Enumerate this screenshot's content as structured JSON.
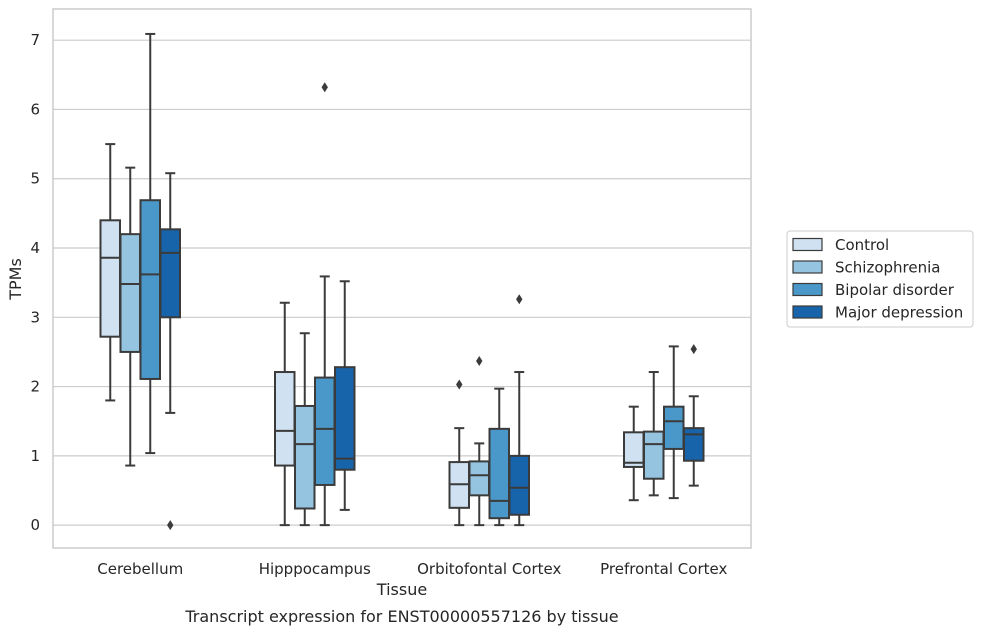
{
  "chart_data": {
    "type": "box",
    "title": "",
    "caption": "Transcript expression for ENST00000557126 by tissue",
    "xlabel": "Tissue",
    "ylabel": "TPMs",
    "ylim": [
      -0.33,
      7.45
    ],
    "yticks": [
      0,
      1,
      2,
      3,
      4,
      5,
      6,
      7
    ],
    "grid": "horizontal",
    "legend_position": "right",
    "categories": [
      "Cerebellum",
      "Hipppocampus",
      "Orbitofontal Cortex",
      "Prefrontal Cortex"
    ],
    "series": [
      {
        "name": "Control",
        "color": "#d0e1f2",
        "boxes": [
          {
            "whislo": 1.8,
            "q1": 2.72,
            "med": 3.86,
            "q3": 4.4,
            "whishi": 5.5,
            "fliers": []
          },
          {
            "whislo": 0.0,
            "q1": 0.86,
            "med": 1.36,
            "q3": 2.21,
            "whishi": 3.21,
            "fliers": []
          },
          {
            "whislo": 0.0,
            "q1": 0.25,
            "med": 0.59,
            "q3": 0.91,
            "whishi": 1.4,
            "fliers": [
              2.03
            ]
          },
          {
            "whislo": 0.36,
            "q1": 0.84,
            "med": 0.9,
            "q3": 1.34,
            "whishi": 1.71,
            "fliers": []
          }
        ]
      },
      {
        "name": "Schizophrenia",
        "color": "#94c4df",
        "boxes": [
          {
            "whislo": 0.86,
            "q1": 2.5,
            "med": 3.48,
            "q3": 4.2,
            "whishi": 5.16,
            "fliers": []
          },
          {
            "whislo": 0.0,
            "q1": 0.24,
            "med": 1.17,
            "q3": 1.72,
            "whishi": 2.77,
            "fliers": []
          },
          {
            "whislo": 0.0,
            "q1": 0.43,
            "med": 0.72,
            "q3": 0.92,
            "whishi": 1.18,
            "fliers": [
              2.37
            ]
          },
          {
            "whislo": 0.43,
            "q1": 0.67,
            "med": 1.17,
            "q3": 1.35,
            "whishi": 2.21,
            "fliers": []
          }
        ]
      },
      {
        "name": "Bipolar disorder",
        "color": "#4a98c9",
        "boxes": [
          {
            "whislo": 1.04,
            "q1": 2.11,
            "med": 3.62,
            "q3": 4.69,
            "whishi": 7.09,
            "fliers": []
          },
          {
            "whislo": 0.0,
            "q1": 0.58,
            "med": 1.39,
            "q3": 2.13,
            "whishi": 3.59,
            "fliers": [
              6.32
            ]
          },
          {
            "whislo": 0.0,
            "q1": 0.1,
            "med": 0.35,
            "q3": 1.39,
            "whishi": 1.97,
            "fliers": []
          },
          {
            "whislo": 0.39,
            "q1": 1.1,
            "med": 1.5,
            "q3": 1.71,
            "whishi": 2.58,
            "fliers": []
          }
        ]
      },
      {
        "name": "Major depression",
        "color": "#1764ab",
        "boxes": [
          {
            "whislo": 1.62,
            "q1": 3.0,
            "med": 3.93,
            "q3": 4.27,
            "whishi": 5.08,
            "fliers": [
              0.0
            ]
          },
          {
            "whislo": 0.22,
            "q1": 0.8,
            "med": 0.96,
            "q3": 2.28,
            "whishi": 3.52,
            "fliers": []
          },
          {
            "whislo": 0.0,
            "q1": 0.15,
            "med": 0.54,
            "q3": 1.0,
            "whishi": 2.21,
            "fliers": [
              3.26
            ]
          },
          {
            "whislo": 0.57,
            "q1": 0.93,
            "med": 1.31,
            "q3": 1.4,
            "whishi": 1.86,
            "fliers": [
              2.54
            ]
          }
        ]
      }
    ]
  }
}
